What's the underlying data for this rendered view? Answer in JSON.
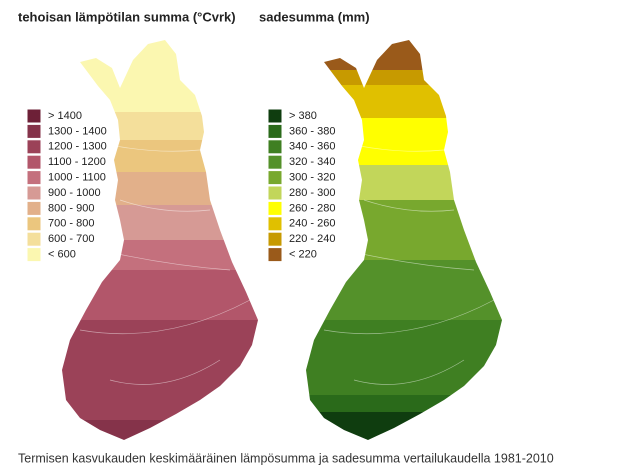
{
  "maps": [
    {
      "title": "tehoisan lämpötilan summa (°Cvrk)",
      "legend": [
        {
          "label": "> 1400",
          "color": "#6d2037"
        },
        {
          "label": "1300 - 1400",
          "color": "#85334a"
        },
        {
          "label": "1200 - 1300",
          "color": "#9b4258"
        },
        {
          "label": "1100 - 1200",
          "color": "#b2566a"
        },
        {
          "label": "1000 - 1100",
          "color": "#c4707d"
        },
        {
          "label": "900 - 1000",
          "color": "#d69a95"
        },
        {
          "label": "800 - 900",
          "color": "#e2b08a"
        },
        {
          "label": "700 - 800",
          "color": "#ebc67e"
        },
        {
          "label": "600 - 700",
          "color": "#f4df9b"
        },
        {
          "label": "< 600",
          "color": "#fbf7b0"
        }
      ]
    },
    {
      "title": "sadesumma (mm)",
      "legend": [
        {
          "label": "> 380",
          "color": "#0f3d0f"
        },
        {
          "label": "360 - 380",
          "color": "#2a6a1a"
        },
        {
          "label": "340 - 360",
          "color": "#3f7f22"
        },
        {
          "label": "320 - 340",
          "color": "#54912a"
        },
        {
          "label": "300 - 320",
          "color": "#78a82e"
        },
        {
          "label": "280 - 300",
          "color": "#c2d65a"
        },
        {
          "label": "260 - 280",
          "color": "#ffff00"
        },
        {
          "label": "240 - 260",
          "color": "#e0c000"
        },
        {
          "label": "220 - 240",
          "color": "#c79a00"
        },
        {
          "label": "< 220",
          "color": "#9a5a1a"
        }
      ]
    }
  ],
  "caption": "Termisen kasvukauden keskimääräinen lämpösumma ja sadesumma vertailukaudella 1981-2010"
}
